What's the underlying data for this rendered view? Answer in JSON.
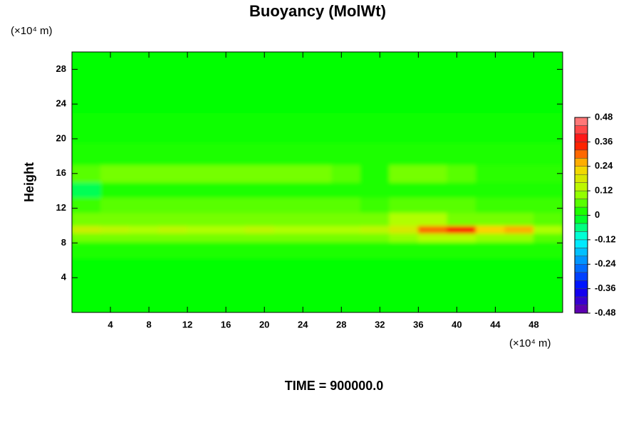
{
  "chart_data": {
    "type": "heatmap",
    "title": "Buoyancy (MolWt)",
    "y_label": "Height",
    "y_unit": "(×10⁴ m)",
    "x_unit": "(×10⁴ m)",
    "footer": "TIME = 900000.0",
    "x": [
      1.5,
      4.5,
      7.5,
      10.5,
      13.5,
      16.5,
      19.5,
      22.5,
      25.5,
      28.5,
      31.5,
      34.5,
      37.5,
      40.5,
      43.5,
      46.5,
      49.5
    ],
    "y": [
      2,
      5,
      7.5,
      8.75,
      9.5,
      10.5,
      12.5,
      14,
      16,
      18,
      21,
      25,
      28.5
    ],
    "z": [
      [
        0,
        0,
        0,
        0,
        0,
        0,
        0,
        0,
        0,
        0,
        0,
        0,
        0,
        0,
        0,
        0,
        0
      ],
      [
        0,
        0,
        0,
        0,
        0,
        0,
        0,
        0,
        0,
        0,
        0,
        0,
        0,
        0,
        0,
        0,
        0
      ],
      [
        0.02,
        0.02,
        0.02,
        0.02,
        0.02,
        0.02,
        0.02,
        0.02,
        0.02,
        0.02,
        0.02,
        0.02,
        0.02,
        0.02,
        0.02,
        0.02,
        0.02
      ],
      [
        0.08,
        0.08,
        0.08,
        0.08,
        0.08,
        0.08,
        0.08,
        0.08,
        0.08,
        0.08,
        0.08,
        0.1,
        0.12,
        0.12,
        0.1,
        0.1,
        0.06
      ],
      [
        0.16,
        0.14,
        0.12,
        0.14,
        0.12,
        0.12,
        0.14,
        0.12,
        0.12,
        0.12,
        0.14,
        0.18,
        0.3,
        0.36,
        0.24,
        0.26,
        0.12
      ],
      [
        0.08,
        0.08,
        0.08,
        0.08,
        0.08,
        0.08,
        0.08,
        0.08,
        0.08,
        0.08,
        0.08,
        0.12,
        0.12,
        0.08,
        0.08,
        0.08,
        0.06
      ],
      [
        0.04,
        0.06,
        0.06,
        0.06,
        0.06,
        0.06,
        0.06,
        0.06,
        0.06,
        0.06,
        0.04,
        0.06,
        0.06,
        0.06,
        0.04,
        0.04,
        0.04
      ],
      [
        -0.04,
        0.02,
        0.02,
        0.02,
        0.02,
        0.02,
        0.02,
        0.02,
        0.02,
        0.02,
        0.02,
        0.02,
        0.02,
        0.02,
        0.02,
        0.02,
        0.02
      ],
      [
        0.06,
        0.08,
        0.08,
        0.08,
        0.08,
        0.08,
        0.08,
        0.08,
        0.08,
        0.06,
        0.02,
        0.08,
        0.08,
        0.06,
        0.03,
        0.03,
        0.03
      ],
      [
        0.02,
        0.02,
        0.02,
        0.02,
        0.02,
        0.02,
        0.02,
        0.02,
        0.02,
        0.02,
        0.02,
        0.02,
        0.02,
        0.02,
        0.02,
        0.02,
        0.02
      ],
      [
        0.01,
        0.01,
        0.01,
        0.01,
        0.01,
        0.01,
        0.01,
        0.01,
        0.01,
        0.01,
        0.01,
        0.01,
        0.01,
        0.01,
        0.01,
        0.01,
        0.01
      ],
      [
        0,
        0,
        0,
        0,
        0,
        0,
        0,
        0,
        0,
        0,
        0,
        0,
        0,
        0,
        0,
        0,
        0
      ],
      [
        0,
        0,
        0,
        0,
        0,
        0,
        0,
        0,
        0,
        0,
        0,
        0,
        0,
        0,
        0,
        0,
        0
      ]
    ],
    "xlim": [
      0,
      51
    ],
    "ylim": [
      0,
      30
    ],
    "xticks": [
      4,
      8,
      12,
      16,
      20,
      24,
      28,
      32,
      36,
      40,
      44,
      48
    ],
    "yticks": [
      4,
      8,
      12,
      16,
      20,
      24,
      28
    ],
    "zlim": [
      -0.48,
      0.48
    ],
    "zticks": [
      0.48,
      0.36,
      0.24,
      0.12,
      0,
      -0.12,
      -0.24,
      -0.36,
      -0.48
    ],
    "colorscale": [
      "#7000a0",
      "#0000ff",
      "#0080ff",
      "#00ffff",
      "#00ff00",
      "#b0ff00",
      "#ffd000",
      "#ff0000",
      "#ff9090"
    ]
  }
}
